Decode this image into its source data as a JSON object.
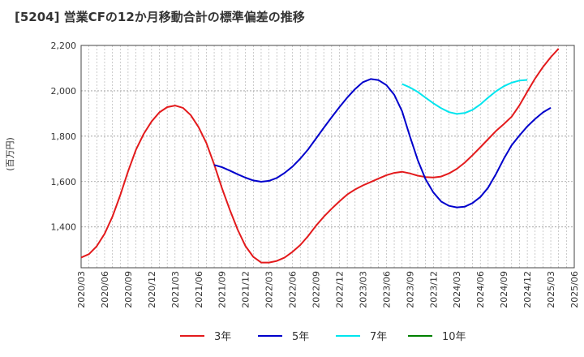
{
  "chart_data": {
    "type": "line",
    "title": "[5204]  営業CFの12か月移動合計の標準偏差の推移",
    "ylabel": "(百万円)",
    "ylim": [
      1220,
      2200
    ],
    "yticks": [
      1400,
      1600,
      1800,
      2000,
      2200
    ],
    "ytick_labels": [
      "1,400",
      "1,600",
      "1,800",
      "2,000",
      "2,200"
    ],
    "xticks": [
      "2020/03",
      "2020/06",
      "2020/09",
      "2020/12",
      "2021/03",
      "2021/06",
      "2021/09",
      "2021/12",
      "2022/03",
      "2022/06",
      "2022/09",
      "2022/12",
      "2023/03",
      "2023/06",
      "2023/09",
      "2023/12",
      "2024/03",
      "2024/06",
      "2024/09",
      "2024/12",
      "2025/03",
      "2025/06"
    ],
    "grid": true,
    "legend_position": "bottom",
    "series": [
      {
        "name": "3年",
        "color": "#e31a1c",
        "start": "2020/03",
        "values": [
          1265,
          1280,
          1315,
          1370,
          1445,
          1540,
          1645,
          1740,
          1810,
          1865,
          1905,
          1928,
          1935,
          1925,
          1893,
          1840,
          1770,
          1675,
          1570,
          1475,
          1388,
          1315,
          1268,
          1243,
          1243,
          1250,
          1265,
          1290,
          1320,
          1360,
          1405,
          1445,
          1480,
          1513,
          1543,
          1565,
          1583,
          1598,
          1613,
          1628,
          1638,
          1643,
          1636,
          1626,
          1620,
          1618,
          1622,
          1636,
          1656,
          1683,
          1716,
          1751,
          1787,
          1823,
          1853,
          1886,
          1936,
          1996,
          2054,
          2105,
          2148,
          2186
        ]
      },
      {
        "name": "5年",
        "color": "#0000cc",
        "start": "2021/08",
        "values": [
          1673,
          1663,
          1648,
          1632,
          1617,
          1605,
          1599,
          1603,
          1616,
          1638,
          1666,
          1701,
          1742,
          1789,
          1837,
          1883,
          1928,
          1970,
          2008,
          2038,
          2052,
          2047,
          2025,
          1983,
          1910,
          1800,
          1695,
          1611,
          1552,
          1512,
          1493,
          1486,
          1489,
          1505,
          1532,
          1573,
          1633,
          1700,
          1760,
          1803,
          1843,
          1876,
          1905,
          1925
        ]
      },
      {
        "name": "7年",
        "color": "#00e5ee",
        "start": "2023/08",
        "values": [
          2030,
          2015,
          1995,
          1970,
          1945,
          1923,
          1906,
          1898,
          1902,
          1916,
          1940,
          1970,
          1998,
          2020,
          2036,
          2045,
          2048
        ]
      },
      {
        "name": "10年",
        "color": "#008000",
        "start": "2025/03",
        "values": []
      }
    ]
  }
}
